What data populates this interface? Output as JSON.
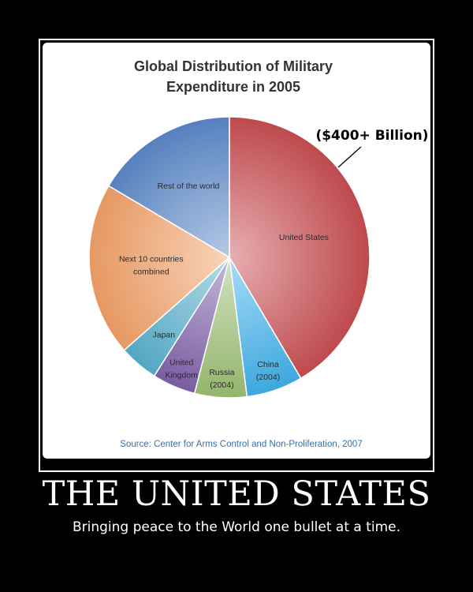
{
  "colors": {
    "united_states": "#c84d51",
    "china": "#3fb1ea",
    "russia": "#9bbf72",
    "united_kingdom": "#7f62a9",
    "japan": "#56b0cc",
    "next_10": "#f2a066",
    "rest": "#5b88c8",
    "source_text": "#3a6fa9",
    "headline": "#ffffff"
  },
  "chart_data": {
    "type": "pie",
    "title_lines": [
      "Global Distribution of Military",
      "Expenditure in 2005"
    ],
    "annotation": "($400+ Billion)",
    "source": "Source: Center for Arms Control and Non-Proliferation, 2007",
    "slices": [
      {
        "label_lines": [
          "United States"
        ],
        "value": 41.5,
        "color_key": "united_states"
      },
      {
        "label_lines": [
          "China",
          "(2004)"
        ],
        "value": 6.5,
        "color_key": "china"
      },
      {
        "label_lines": [
          "Russia",
          "(2004)"
        ],
        "value": 6.0,
        "color_key": "russia"
      },
      {
        "label_lines": [
          "United",
          "Kingdom"
        ],
        "value": 5.0,
        "color_key": "united_kingdom"
      },
      {
        "label_lines": [
          "Japan"
        ],
        "value": 4.5,
        "color_key": "japan"
      },
      {
        "label_lines": [
          "Next 10 countries",
          "combined"
        ],
        "value": 20.0,
        "color_key": "next_10"
      },
      {
        "label_lines": [
          "Rest of the world"
        ],
        "value": 16.5,
        "color_key": "rest"
      }
    ]
  },
  "poster": {
    "headline": "THE UNITED STATES",
    "tagline": "Bringing peace to the World one bullet at a time."
  }
}
